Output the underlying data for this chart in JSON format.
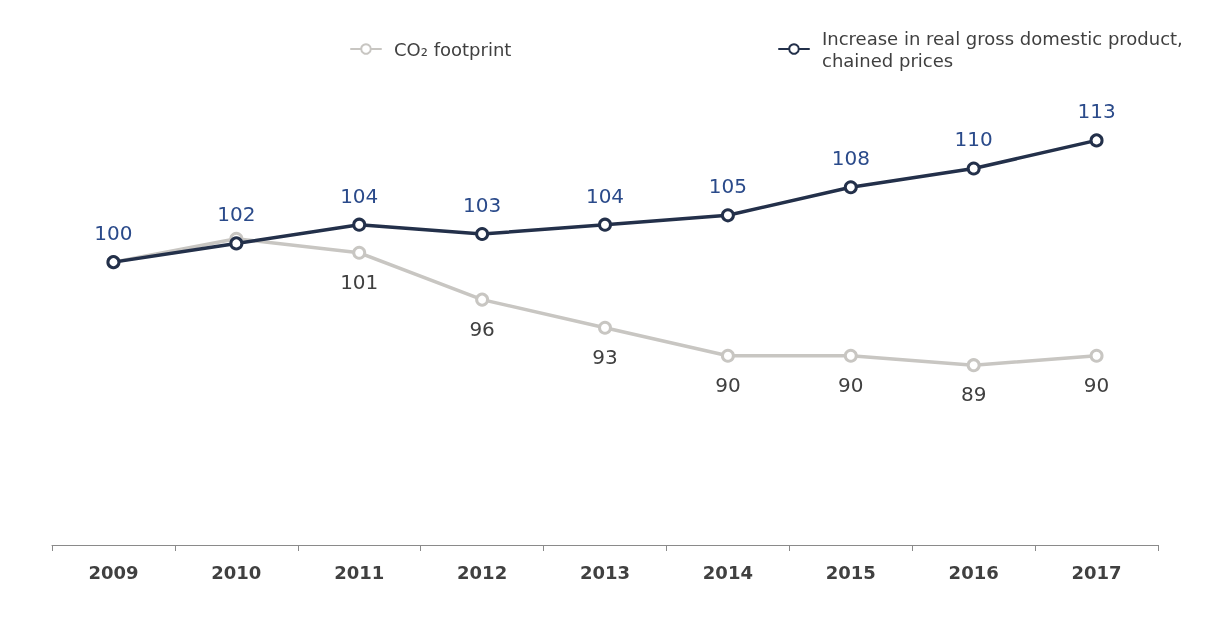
{
  "chart_data": {
    "type": "line",
    "categories": [
      "2009",
      "2010",
      "2011",
      "2012",
      "2013",
      "2014",
      "2015",
      "2016",
      "2017"
    ],
    "series": [
      {
        "name": "CO₂ footprint",
        "color": "#c8c6c2",
        "values": [
          100,
          102.5,
          101,
          96,
          93,
          90,
          90,
          89,
          90
        ],
        "value_labels": [
          null,
          null,
          "101",
          "96",
          "93",
          "90",
          "90",
          "89",
          "90"
        ]
      },
      {
        "name": "Increase in real gross domestic product, chained prices",
        "color": "#23304a",
        "values": [
          100,
          102,
          104,
          103,
          104,
          105,
          108,
          110,
          113
        ],
        "value_labels": [
          "100",
          "102",
          "104",
          "103",
          "104",
          "105",
          "108",
          "110",
          "113"
        ]
      }
    ],
    "legend": "top",
    "marker": "circle",
    "line_style": "solid",
    "grid": false,
    "tick_labels": "x"
  }
}
